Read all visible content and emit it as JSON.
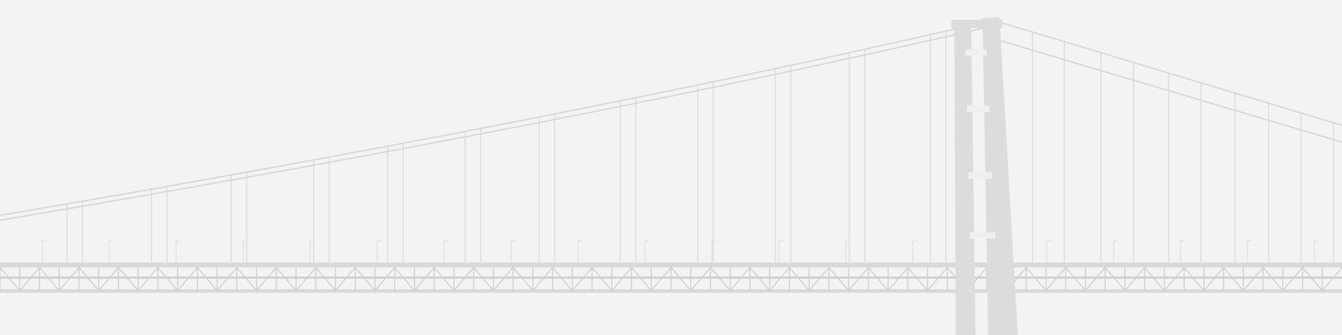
{
  "image": {
    "subject": "suspension-bridge",
    "colors": {
      "background": "#f3f3f3",
      "cables": "#d7d7d7",
      "hangers": "#e1e1e1",
      "tower": "#dcdcdc",
      "deck": "#d9d9d9",
      "truss": "#cfcfcf"
    }
  }
}
